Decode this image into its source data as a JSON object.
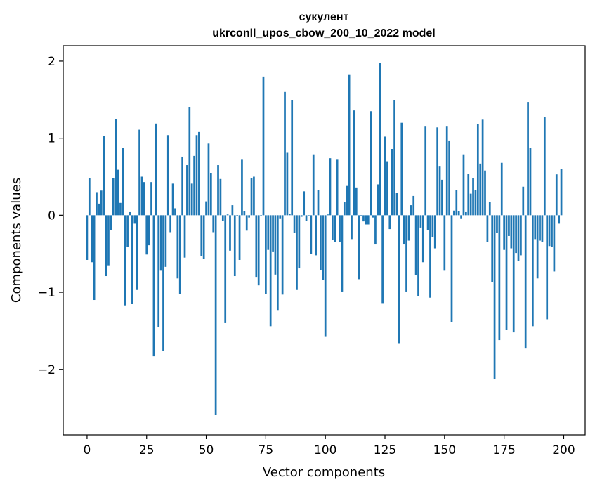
{
  "chart_data": {
    "type": "bar",
    "title_line1": "сукулент",
    "title_line2": "ukrconll_upos_cbow_200_10_2022 model",
    "xlabel": "Vector components",
    "ylabel": "Components values",
    "xlim": [
      -10,
      209
    ],
    "ylim": [
      -2.85,
      2.2
    ],
    "xticks": [
      0,
      25,
      50,
      75,
      100,
      125,
      150,
      175,
      200
    ],
    "xtick_labels": [
      "0",
      "25",
      "50",
      "75",
      "100",
      "125",
      "150",
      "175",
      "200"
    ],
    "yticks": [
      -2,
      -1,
      0,
      1,
      2
    ],
    "ytick_labels": [
      "−2",
      "−1",
      "0",
      "1",
      "2"
    ],
    "bar_color": "#1f77b4",
    "bar_width": 0.8,
    "grid": false,
    "x_start": 0,
    "values": [
      -0.58,
      0.48,
      -0.61,
      -1.1,
      0.3,
      0.15,
      0.32,
      1.03,
      -0.79,
      -0.65,
      -0.19,
      0.48,
      1.25,
      0.59,
      0.16,
      0.87,
      -1.17,
      -0.41,
      0.04,
      -1.15,
      -0.11,
      -0.97,
      1.11,
      0.5,
      0.43,
      -0.51,
      -0.39,
      0.43,
      -1.83,
      1.19,
      -1.45,
      -0.72,
      -1.76,
      -0.67,
      1.04,
      -0.22,
      0.41,
      0.09,
      -0.82,
      -1.02,
      0.76,
      -0.55,
      0.65,
      1.4,
      0.41,
      0.77,
      1.04,
      1.08,
      -0.53,
      -0.57,
      0.18,
      0.93,
      0.55,
      -0.22,
      -2.59,
      0.65,
      0.47,
      -0.07,
      -1.4,
      0.01,
      -0.46,
      0.13,
      -0.79,
      -0.01,
      -0.58,
      0.72,
      0.05,
      -0.2,
      -0.03,
      0.48,
      0.5,
      -0.8,
      -0.91,
      0.0,
      1.8,
      -1.02,
      -0.45,
      -1.44,
      -0.47,
      -0.77,
      -1.23,
      -0.04,
      -1.03,
      1.6,
      0.81,
      0.02,
      1.49,
      -0.23,
      -0.97,
      -0.69,
      -0.02,
      0.31,
      -0.07,
      0.0,
      -0.5,
      0.79,
      -0.52,
      0.33,
      -0.71,
      -0.84,
      -1.57,
      0.01,
      0.74,
      -0.32,
      -0.35,
      0.72,
      -0.35,
      -0.99,
      0.17,
      0.38,
      1.82,
      -0.31,
      1.36,
      0.36,
      -0.83,
      -0.01,
      -0.08,
      -0.12,
      -0.12,
      1.35,
      -0.03,
      -0.38,
      0.4,
      1.98,
      -1.14,
      1.02,
      0.7,
      -0.18,
      0.86,
      1.49,
      0.29,
      -1.66,
      1.2,
      -0.38,
      -0.99,
      -0.33,
      0.13,
      0.25,
      -0.78,
      -1.05,
      -0.16,
      -0.61,
      1.15,
      -0.19,
      -1.07,
      -0.28,
      -0.43,
      1.14,
      0.64,
      0.46,
      -0.72,
      1.15,
      0.97,
      -1.39,
      0.06,
      0.33,
      0.05,
      -0.04,
      0.79,
      0.04,
      0.54,
      0.28,
      0.48,
      0.33,
      1.18,
      0.67,
      1.24,
      0.58,
      -0.35,
      0.17,
      -0.87,
      -2.13,
      -0.23,
      -1.62,
      0.68,
      -0.45,
      -1.49,
      -0.27,
      -0.43,
      -1.52,
      -0.49,
      -0.59,
      -0.52,
      0.37,
      -1.73,
      1.47,
      0.87,
      -1.44,
      -0.31,
      -0.82,
      -0.33,
      -0.35,
      1.27,
      -1.35,
      -0.4,
      -0.41,
      -0.73,
      0.53,
      -0.11,
      0.6
    ]
  }
}
